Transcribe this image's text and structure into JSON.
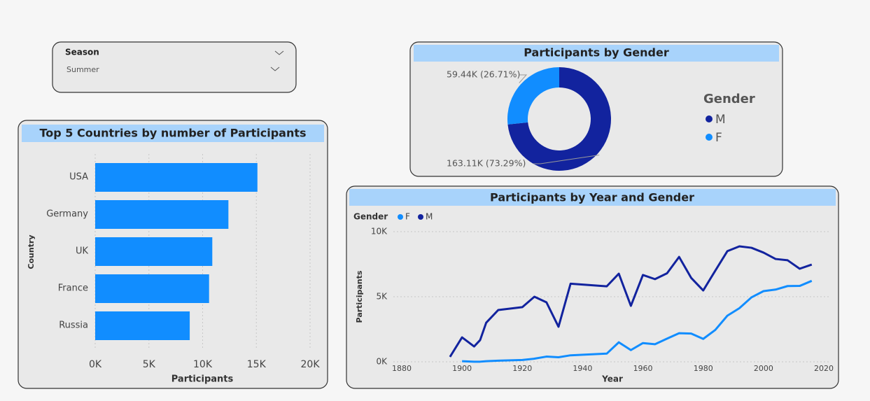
{
  "slicer": {
    "label": "Season",
    "value": "Summer"
  },
  "chart_data": [
    {
      "type": "bar",
      "title": "Top 5 Countries by number of Participants",
      "x_label": "Participants",
      "y_label": "Country",
      "categories": [
        "USA",
        "Germany",
        "UK",
        "France",
        "Russia"
      ],
      "values": [
        15100,
        12400,
        10900,
        10600,
        8800
      ],
      "color": "#118dff",
      "xlim": [
        0,
        20000
      ],
      "xticks": [
        {
          "value": 0,
          "label": "0K"
        },
        {
          "value": 5000,
          "label": "5K"
        },
        {
          "value": 10000,
          "label": "10K"
        },
        {
          "value": 15000,
          "label": "15K"
        },
        {
          "value": 20000,
          "label": "20K"
        }
      ],
      "grid": true
    },
    {
      "type": "pie",
      "title": "Participants by Gender",
      "legend_title": "Gender",
      "donut": true,
      "categories": [
        "M",
        "F"
      ],
      "values": [
        163110,
        59440
      ],
      "value_labels": [
        "163.11K (73.29%)",
        "59.44K (26.71%)"
      ],
      "colors": [
        "#12239e",
        "#118dff"
      ]
    },
    {
      "type": "line",
      "title": "Participants by Year and Gender",
      "legend_title": "Gender",
      "x_label": "Year",
      "y_label": "Participants",
      "x": [
        1896,
        1900,
        1904,
        1906,
        1908,
        1912,
        1920,
        1924,
        1928,
        1932,
        1936,
        1948,
        1952,
        1956,
        1960,
        1964,
        1968,
        1972,
        1976,
        1980,
        1984,
        1988,
        1992,
        1996,
        2000,
        2004,
        2008,
        2012,
        2016
      ],
      "series": [
        {
          "name": "F",
          "color": "#118dff",
          "values": [
            null,
            50,
            10,
            10,
            50,
            90,
            140,
            240,
            400,
            350,
            500,
            630,
            1500,
            900,
            1440,
            1350,
            1780,
            2200,
            2170,
            1760,
            2450,
            3540,
            4120,
            4950,
            5430,
            5550,
            5820,
            5830,
            6220
          ]
        },
        {
          "name": "M",
          "color": "#12239e",
          "values": [
            380,
            1880,
            1180,
            1670,
            3000,
            3980,
            4200,
            5000,
            4570,
            2690,
            6000,
            5800,
            6770,
            4300,
            6670,
            6350,
            6800,
            8060,
            6450,
            5480,
            7000,
            8500,
            8870,
            8760,
            8390,
            7900,
            7800,
            7150,
            7470
          ]
        }
      ],
      "xlim": [
        1880,
        2020
      ],
      "xticks": [
        1880,
        1900,
        1920,
        1940,
        1960,
        1980,
        2000,
        2020
      ],
      "ylim": [
        0,
        10000
      ],
      "yticks": [
        {
          "value": 0,
          "label": "0K"
        },
        {
          "value": 5000,
          "label": "5K"
        },
        {
          "value": 10000,
          "label": "10K"
        }
      ],
      "grid": true
    }
  ]
}
